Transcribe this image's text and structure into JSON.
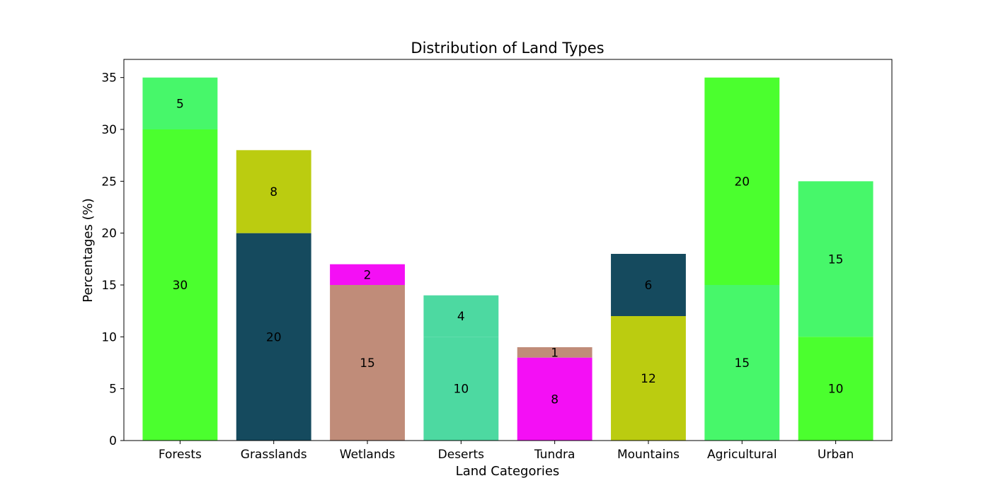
{
  "chart_data": {
    "type": "bar",
    "stacked": true,
    "title": "Distribution of Land Types",
    "xlabel": "Land Categories",
    "ylabel": "Percentages (%)",
    "ylim": [
      0,
      36.75
    ],
    "yticks": [
      0,
      5,
      10,
      15,
      20,
      25,
      30,
      35
    ],
    "categories": [
      "Forests",
      "Grasslands",
      "Wetlands",
      "Deserts",
      "Tundra",
      "Mountains",
      "Agricultural",
      "Urban"
    ],
    "stacks": [
      [
        {
          "value": 30,
          "color": "#4bff2e"
        },
        {
          "value": 5,
          "color": "#47f76a"
        }
      ],
      [
        {
          "value": 20,
          "color": "#154a5e"
        },
        {
          "value": 8,
          "color": "#bbcc10"
        }
      ],
      [
        {
          "value": 15,
          "color": "#c08c79"
        },
        {
          "value": 2,
          "color": "#f40ff5"
        }
      ],
      [
        {
          "value": 10,
          "color": "#4dd9a1"
        },
        {
          "value": 4,
          "color": "#4dd9a1"
        }
      ],
      [
        {
          "value": 8,
          "color": "#f40ff5"
        },
        {
          "value": 1,
          "color": "#c08c79"
        }
      ],
      [
        {
          "value": 12,
          "color": "#bbcc10"
        },
        {
          "value": 6,
          "color": "#154a5e"
        }
      ],
      [
        {
          "value": 15,
          "color": "#47f76a"
        },
        {
          "value": 20,
          "color": "#4bff2e"
        }
      ],
      [
        {
          "value": 10,
          "color": "#4bff2e"
        },
        {
          "value": 15,
          "color": "#47f76a"
        }
      ]
    ],
    "grid": false,
    "legend": "none"
  }
}
